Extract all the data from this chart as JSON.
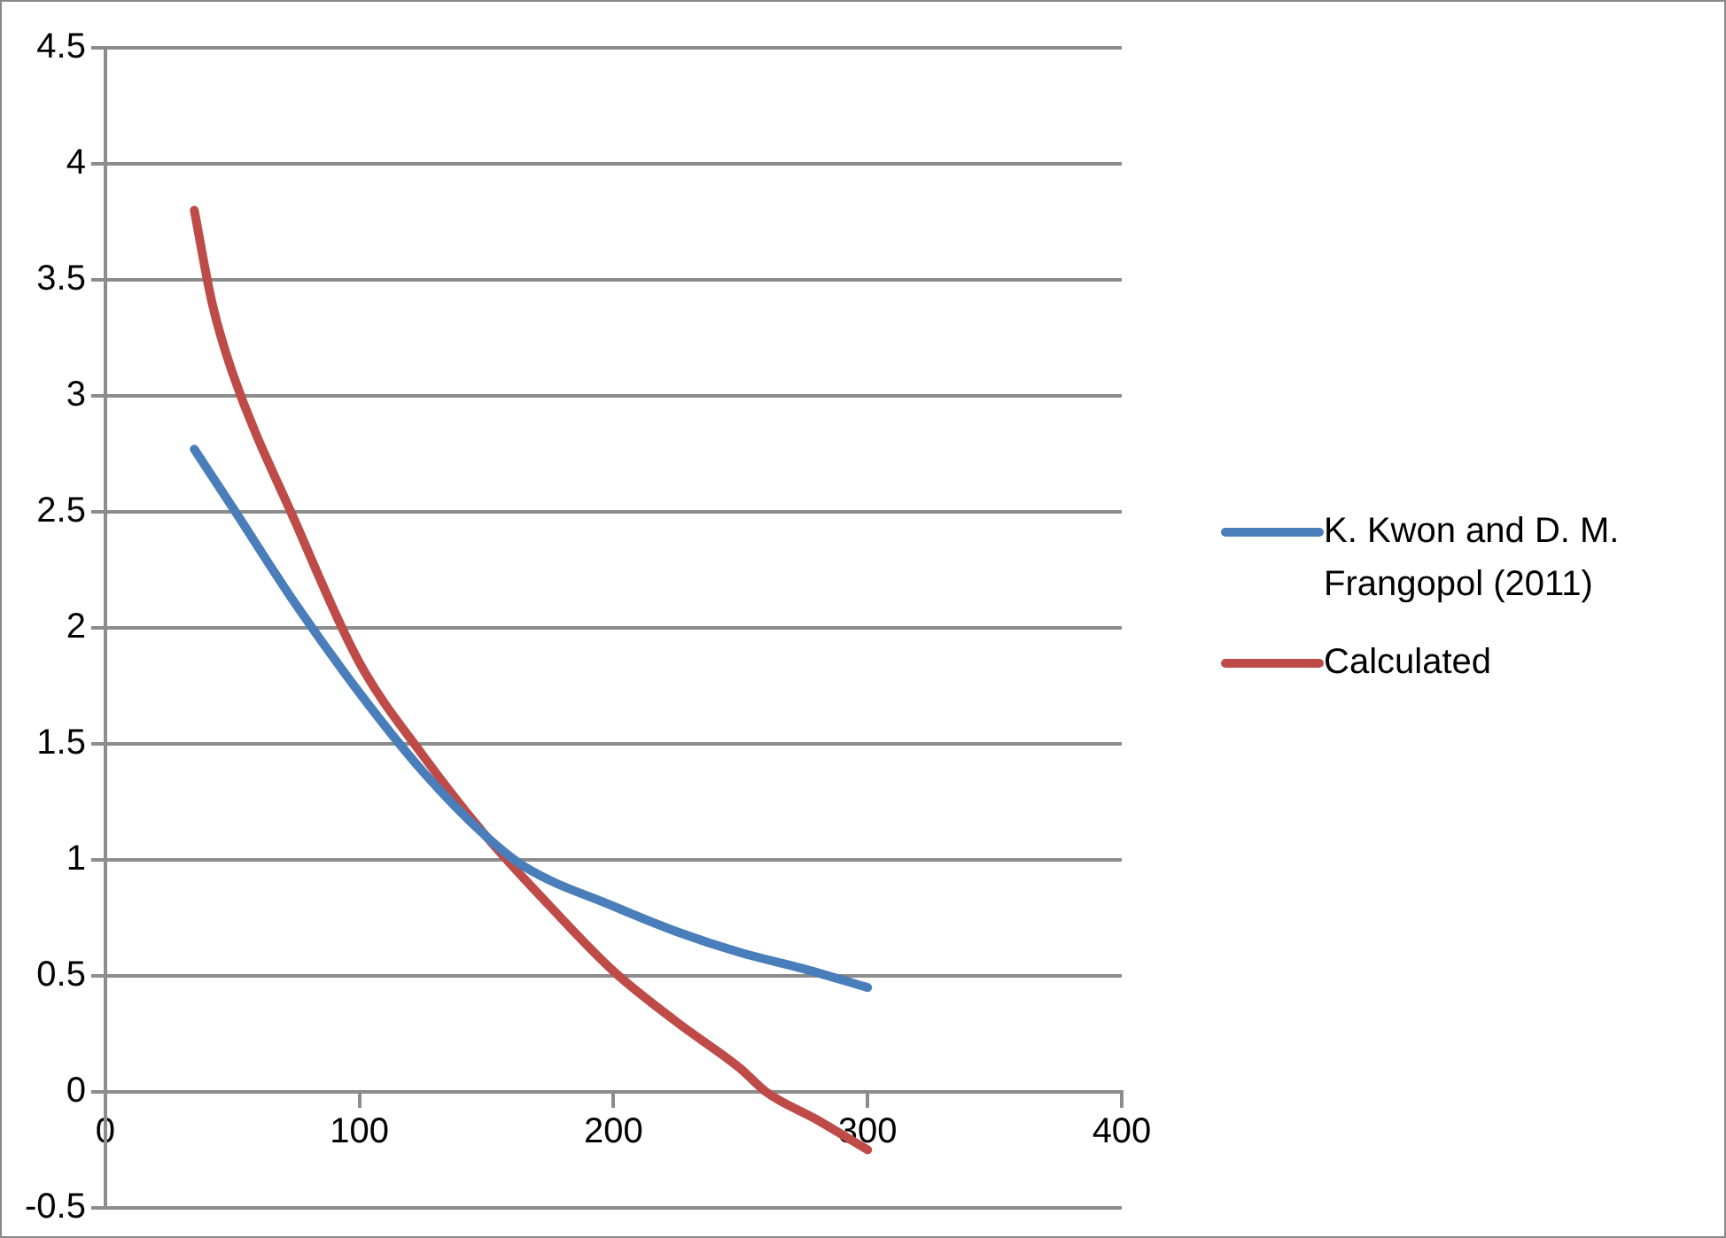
{
  "chart_data": {
    "type": "line",
    "xlim": [
      0,
      400
    ],
    "xticks": [
      0,
      100,
      200,
      300,
      400
    ],
    "ylim": [
      -0.5,
      4.5
    ],
    "yticks": [
      -0.5,
      0,
      0.5,
      1,
      1.5,
      2,
      2.5,
      3,
      3.5,
      4,
      4.5
    ],
    "grid": "y",
    "legend": "right",
    "marker": "none",
    "line_style": "solid",
    "series": [
      {
        "name": "K. Kwon and D. M. Frangopol (2011)",
        "color": "#4a7ebb",
        "x": [
          35,
          50,
          75,
          100,
          125,
          150,
          165,
          200,
          225,
          250,
          275,
          300
        ],
        "values": [
          2.77,
          2.52,
          2.1,
          1.72,
          1.38,
          1.1,
          0.97,
          0.8,
          0.69,
          0.6,
          0.53,
          0.45
        ]
      },
      {
        "name": "Calculated",
        "color": "#be4b48",
        "x": [
          35,
          42,
          50,
          75,
          100,
          125,
          150,
          175,
          200,
          225,
          250,
          260,
          280,
          300
        ],
        "values": [
          3.8,
          3.4,
          3.1,
          2.45,
          1.85,
          1.45,
          1.1,
          0.8,
          0.52,
          0.3,
          0.1,
          0.0,
          -0.12,
          -0.25
        ]
      }
    ]
  }
}
